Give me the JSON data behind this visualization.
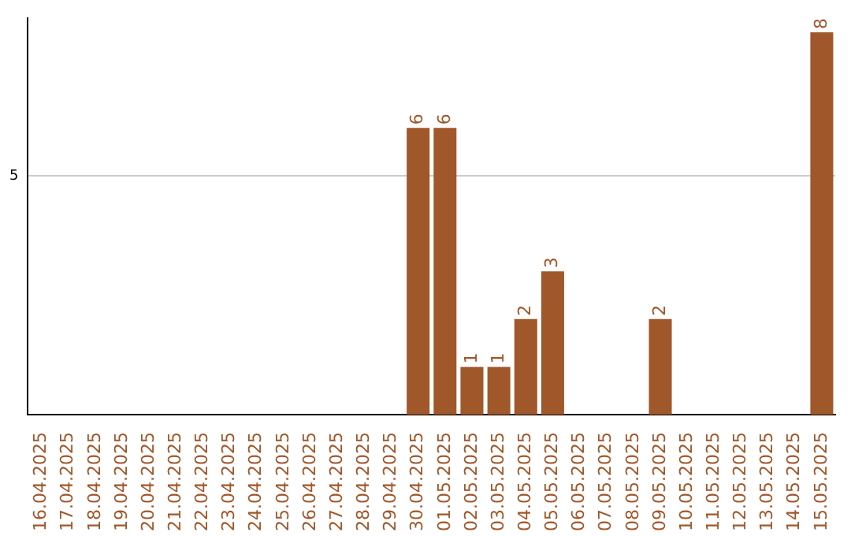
{
  "chart_data": {
    "type": "bar",
    "categories": [
      "16.04.2025",
      "17.04.2025",
      "18.04.2025",
      "19.04.2025",
      "20.04.2025",
      "21.04.2025",
      "22.04.2025",
      "23.04.2025",
      "24.04.2025",
      "25.04.2025",
      "26.04.2025",
      "27.04.2025",
      "28.04.2025",
      "29.04.2025",
      "30.04.2025",
      "01.05.2025",
      "02.05.2025",
      "03.05.2025",
      "04.05.2025",
      "05.05.2025",
      "06.05.2025",
      "07.05.2025",
      "08.05.2025",
      "09.05.2025",
      "10.05.2025",
      "11.05.2025",
      "12.05.2025",
      "13.05.2025",
      "14.05.2025",
      "15.05.2025"
    ],
    "values": [
      null,
      null,
      null,
      null,
      null,
      null,
      null,
      null,
      null,
      null,
      null,
      null,
      null,
      null,
      6,
      6,
      1,
      1,
      2,
      3,
      null,
      null,
      null,
      2,
      null,
      null,
      null,
      null,
      null,
      8
    ],
    "color": "#a0572a",
    "ylim": [
      0,
      8.3
    ],
    "yticks": [
      5
    ],
    "grid": "y",
    "data_labels": true
  }
}
